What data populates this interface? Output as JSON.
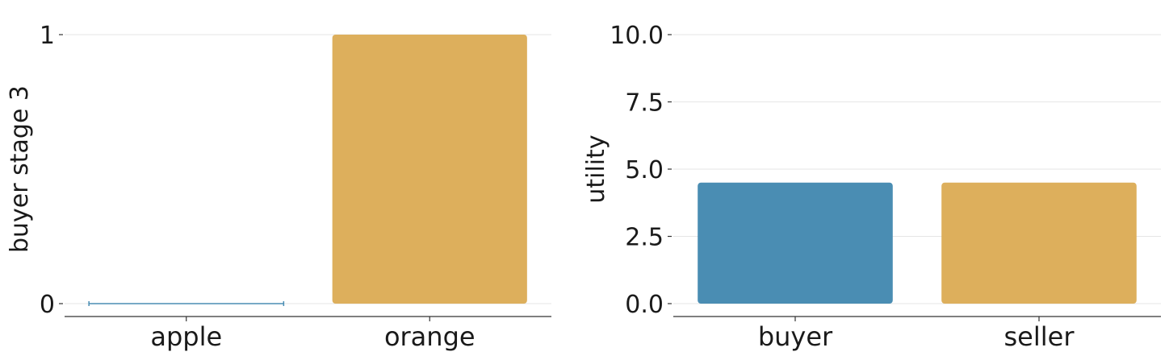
{
  "chart_data": [
    {
      "type": "bar",
      "categories": [
        "apple",
        "orange"
      ],
      "values": [
        0,
        1
      ],
      "colors": [
        "#4a8db3",
        "#ddaf5c"
      ],
      "ylabel": "buyer stage 3",
      "xlabel": "",
      "ylim": [
        0,
        1
      ],
      "yticks": [
        0,
        1
      ],
      "ytick_labels": [
        "0",
        "1"
      ],
      "grid": true
    },
    {
      "type": "bar",
      "categories": [
        "buyer",
        "seller"
      ],
      "values": [
        4.5,
        4.5
      ],
      "colors": [
        "#4a8db3",
        "#ddaf5c"
      ],
      "ylabel": "utility",
      "xlabel": "",
      "ylim": [
        0,
        10
      ],
      "yticks": [
        0,
        2.5,
        5,
        7.5,
        10
      ],
      "ytick_labels": [
        "0.0",
        "2.5",
        "5.0",
        "7.5",
        "10.0"
      ],
      "grid": true
    }
  ]
}
